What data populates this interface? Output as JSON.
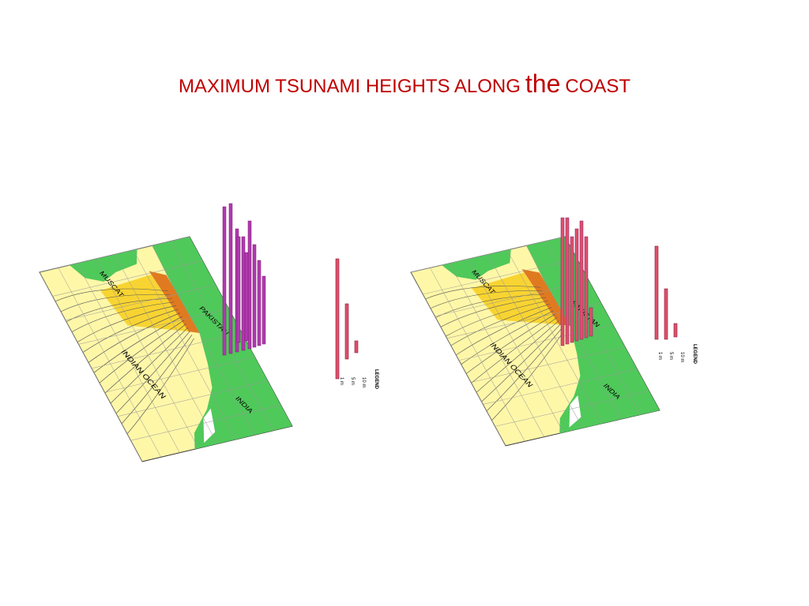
{
  "header": {
    "title": {
      "part1": "MAXIMUM TSUNAMI HEIGHTS ALONG",
      "part2": "the",
      "part3": "COAST"
    }
  },
  "maps": [
    {
      "labels": {
        "muscat": "MUSCAT",
        "pakistan": "PAKISTAN",
        "ocean": "INDIAN OCEAN",
        "india": "INDIA"
      },
      "legend": {
        "title": "LEGEND",
        "items": [
          "10 m",
          "5 m",
          "1 m"
        ]
      }
    },
    {
      "labels": {
        "muscat": "MUSCAT",
        "pakistan": "PAKISTAN",
        "ocean": "INDIAN OCEAN",
        "india": "INDIA"
      },
      "legend": {
        "title": "LEGEND",
        "items": [
          "10 m",
          "5 m",
          "1 m"
        ]
      }
    }
  ]
}
